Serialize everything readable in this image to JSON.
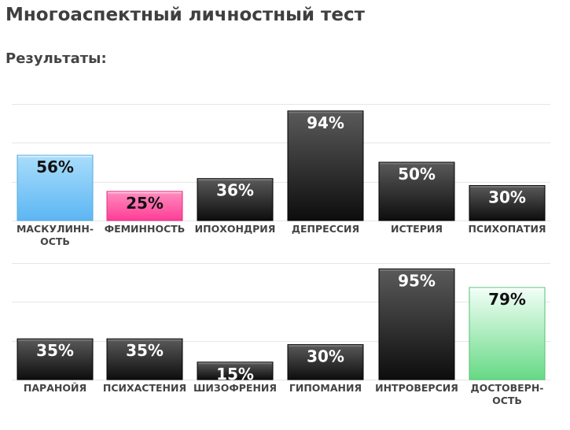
{
  "page": {
    "title": "Многоаспектный личностный тест",
    "results_label": "Результаты:"
  },
  "colors": {
    "dark_bar_top": "#5a5a5a",
    "dark_bar_bottom": "#0d0d0d",
    "blue_bar_top": "#a9ddfb",
    "blue_bar_bottom": "#5cb6f3",
    "pink_bar_top": "#ff8ec0",
    "pink_bar_bottom": "#ff3d96",
    "green_bar_top": "#f2fff7",
    "green_bar_bottom": "#66d985"
  },
  "chart_data": [
    {
      "type": "bar",
      "ylim": [
        0,
        100
      ],
      "grid": true,
      "categories": [
        [
          "МАСКУЛИНН-",
          "ОСТЬ"
        ],
        [
          "ФЕМИННОСТЬ"
        ],
        [
          "ИПОХОНДРИЯ"
        ],
        [
          "ДЕПРЕССИЯ"
        ],
        [
          "ИСТЕРИЯ"
        ],
        [
          "ПСИХОПАТИЯ"
        ]
      ],
      "values": [
        56,
        25,
        36,
        94,
        50,
        30
      ],
      "value_labels": [
        "56%",
        "25%",
        "36%",
        "94%",
        "50%",
        "30%"
      ],
      "bar_styles": [
        "blue",
        "pink",
        "dark",
        "dark",
        "dark",
        "dark"
      ]
    },
    {
      "type": "bar",
      "ylim": [
        0,
        100
      ],
      "grid": true,
      "categories": [
        [
          "ПАРАНОЙЯ"
        ],
        [
          "ПСИХАСТЕНИЯ"
        ],
        [
          "ШИЗОФРЕНИЯ"
        ],
        [
          "ГИПОМАНИЯ"
        ],
        [
          "ИНТРОВЕРСИЯ"
        ],
        [
          "ДОСТОВЕРН-",
          "ОСТЬ"
        ]
      ],
      "values": [
        35,
        35,
        15,
        30,
        95,
        79
      ],
      "value_labels": [
        "35%",
        "35%",
        "15%",
        "30%",
        "95%",
        "79%"
      ],
      "bar_styles": [
        "dark",
        "dark",
        "dark",
        "dark",
        "dark",
        "green"
      ]
    }
  ]
}
